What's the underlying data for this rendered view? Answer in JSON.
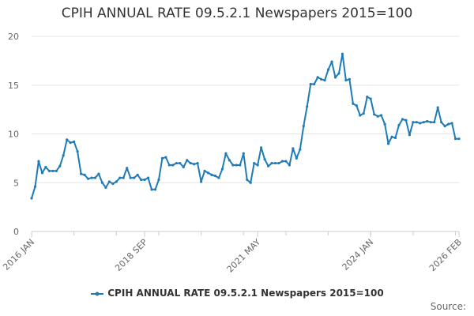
{
  "chart_data": {
    "type": "line",
    "title": "CPIH ANNUAL RATE 09.5.2.1 Newspapers 2015=100",
    "xlabel": "",
    "ylabel": "",
    "ylim": [
      0,
      20
    ],
    "yticks": [
      0,
      5,
      10,
      15,
      20
    ],
    "xlim": [
      "2016-01",
      "2026-02"
    ],
    "xtick_labels": [
      "2016 JAN",
      "2018 SEP",
      "2021 MAY",
      "2024 JAN",
      "2026 FEB"
    ],
    "xtick_dates": [
      "2016-01",
      "2018-09",
      "2021-05",
      "2024-01",
      "2026-02"
    ],
    "grid": true,
    "legend_position": "bottom",
    "color": "#1f7bb6",
    "series": [
      {
        "name": "CPIH ANNUAL RATE 09.5.2.1 Newspapers 2015=100",
        "x": [
          "2016-01",
          "2016-02",
          "2016-03",
          "2016-04",
          "2016-05",
          "2016-06",
          "2016-07",
          "2016-08",
          "2016-09",
          "2016-10",
          "2016-11",
          "2016-12",
          "2017-01",
          "2017-02",
          "2017-03",
          "2017-04",
          "2017-05",
          "2017-06",
          "2017-07",
          "2017-08",
          "2017-09",
          "2017-10",
          "2017-11",
          "2017-12",
          "2018-01",
          "2018-02",
          "2018-03",
          "2018-04",
          "2018-05",
          "2018-06",
          "2018-07",
          "2018-08",
          "2018-09",
          "2018-10",
          "2018-11",
          "2018-12",
          "2019-01",
          "2019-02",
          "2019-03",
          "2019-04",
          "2019-05",
          "2019-06",
          "2019-07",
          "2019-08",
          "2019-09",
          "2019-10",
          "2019-11",
          "2019-12",
          "2020-01",
          "2020-02",
          "2020-03",
          "2020-04",
          "2020-05",
          "2020-06",
          "2020-07",
          "2020-08",
          "2020-09",
          "2020-10",
          "2020-11",
          "2020-12",
          "2021-01",
          "2021-02",
          "2021-03",
          "2021-04",
          "2021-05",
          "2021-06",
          "2021-07",
          "2021-08",
          "2021-09",
          "2021-10",
          "2021-11",
          "2021-12",
          "2022-01",
          "2022-02",
          "2022-03",
          "2022-04",
          "2022-05",
          "2022-06",
          "2022-07",
          "2022-08",
          "2022-09",
          "2022-10",
          "2022-11",
          "2022-12",
          "2023-01",
          "2023-02",
          "2023-03",
          "2023-04",
          "2023-05",
          "2023-06",
          "2023-07",
          "2023-08",
          "2023-09",
          "2023-10",
          "2023-11",
          "2023-12",
          "2024-01",
          "2024-02",
          "2024-03",
          "2024-04",
          "2024-05",
          "2024-06",
          "2024-07",
          "2024-08",
          "2024-09",
          "2024-10",
          "2024-11",
          "2024-12",
          "2025-01",
          "2025-02",
          "2025-03",
          "2025-04",
          "2025-05",
          "2025-06",
          "2025-07",
          "2025-08",
          "2025-09",
          "2025-10",
          "2025-11",
          "2025-12",
          "2026-01",
          "2026-02"
        ],
        "values": [
          3.4,
          4.6,
          7.2,
          6.0,
          6.6,
          6.2,
          6.2,
          6.2,
          6.7,
          7.8,
          9.4,
          9.1,
          9.2,
          8.2,
          5.9,
          5.8,
          5.4,
          5.5,
          5.5,
          5.9,
          5.0,
          4.5,
          5.1,
          4.9,
          5.1,
          5.5,
          5.5,
          6.5,
          5.5,
          5.5,
          5.8,
          5.3,
          5.3,
          5.5,
          4.3,
          4.3,
          5.3,
          7.5,
          7.6,
          6.8,
          6.8,
          7.0,
          7.0,
          6.6,
          7.3,
          7.0,
          6.9,
          7.0,
          5.1,
          6.2,
          6.0,
          5.8,
          5.7,
          5.5,
          6.4,
          8.0,
          7.3,
          6.8,
          6.8,
          6.8,
          8.0,
          5.3,
          5.0,
          7.0,
          6.8,
          8.6,
          7.4,
          6.7,
          7.0,
          7.0,
          7.0,
          7.2,
          7.2,
          6.8,
          8.5,
          7.5,
          8.4,
          10.8,
          12.8,
          15.1,
          15.1,
          15.8,
          15.6,
          15.5,
          16.6,
          17.4,
          15.8,
          16.2,
          18.2,
          15.5,
          15.6,
          13.1,
          12.9,
          11.9,
          12.1,
          13.8,
          13.6,
          12.0,
          11.8,
          11.9,
          11.0,
          9.0,
          9.7,
          9.6,
          10.9,
          11.5,
          11.4,
          9.9,
          11.2,
          11.2,
          11.1,
          11.2,
          11.3,
          11.2,
          11.2,
          12.7,
          11.2,
          10.8,
          11.0,
          11.1,
          9.5,
          9.5
        ]
      }
    ]
  },
  "legend": {
    "label": "CPIH ANNUAL RATE 09.5.2.1 Newspapers 2015=100"
  },
  "source": {
    "label": "Source:"
  }
}
